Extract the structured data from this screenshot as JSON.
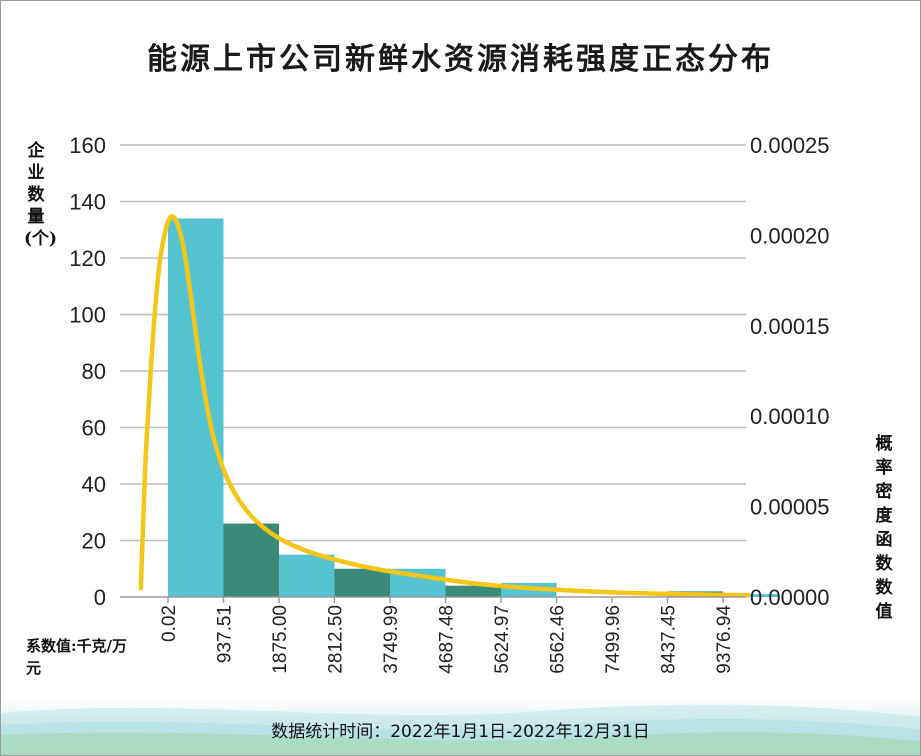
{
  "chart_data": {
    "type": "bar",
    "title": "能源上市公司新鲜水资源消耗强度正态分布",
    "ylabel": "企业数量(个)",
    "y2label": "概率密度函数数值",
    "xlabel": "系数值:千克/万元",
    "footer": "数据统计时间：2022年1月1日-2022年12月31日",
    "x_ticks": [
      "0.02",
      "937.51",
      "1875.00",
      "2812.50",
      "3749.99",
      "4687.48",
      "5624.97",
      "6562.46",
      "7499.96",
      "8437.45",
      "9376.94"
    ],
    "y_ticks": [
      "0",
      "20",
      "40",
      "60",
      "80",
      "100",
      "120",
      "140",
      "160"
    ],
    "y2_ticks": [
      "0.00000",
      "0.00005",
      "0.00010",
      "0.00015",
      "0.00020",
      "0.00025"
    ],
    "ylim": [
      0,
      160
    ],
    "y2lim": [
      0,
      0.00025
    ],
    "bins": [
      {
        "from": 0.02,
        "to": 937.51,
        "count": 134,
        "color": "#55c3d0"
      },
      {
        "from": 937.51,
        "to": 1875.0,
        "count": 26,
        "color": "#3a8a78"
      },
      {
        "from": 1875.0,
        "to": 2812.5,
        "count": 15,
        "color": "#55c3d0"
      },
      {
        "from": 2812.5,
        "to": 3749.99,
        "count": 10,
        "color": "#3a8a78"
      },
      {
        "from": 3749.99,
        "to": 4687.48,
        "count": 10,
        "color": "#55c3d0"
      },
      {
        "from": 4687.48,
        "to": 5624.97,
        "count": 4,
        "color": "#3a8a78"
      },
      {
        "from": 5624.97,
        "to": 6562.46,
        "count": 5,
        "color": "#55c3d0"
      },
      {
        "from": 6562.46,
        "to": 7499.96,
        "count": 0,
        "color": "#3a8a78"
      },
      {
        "from": 7499.96,
        "to": 8437.45,
        "count": 0,
        "color": "#55c3d0"
      },
      {
        "from": 8437.45,
        "to": 9376.94,
        "count": 2,
        "color": "#3a8a78"
      },
      {
        "from": 9376.94,
        "to": 10314.43,
        "count": 1,
        "color": "#55c3d0"
      }
    ],
    "density_curve": {
      "color": "#f5c518",
      "points": [
        [
          -460,
          5e-06
        ],
        [
          -420,
          4e-05
        ],
        [
          -380,
          7.5e-05
        ],
        [
          -320,
          0.00011
        ],
        [
          -240,
          0.00015
        ],
        [
          -140,
          0.000185
        ],
        [
          -40,
          0.000203
        ],
        [
          40,
          0.00021
        ],
        [
          120,
          0.000209
        ],
        [
          220,
          0.0002
        ],
        [
          320,
          0.000182
        ],
        [
          420,
          0.000158
        ],
        [
          560,
          0.000125
        ],
        [
          720,
          9.5e-05
        ],
        [
          900,
          7.4e-05
        ],
        [
          1100,
          5.9e-05
        ],
        [
          1400,
          4.5e-05
        ],
        [
          1800,
          3.4e-05
        ],
        [
          2300,
          2.6e-05
        ],
        [
          2900,
          2e-05
        ],
        [
          3600,
          1.5e-05
        ],
        [
          4400,
          1.1e-05
        ],
        [
          5300,
          7e-06
        ],
        [
          6300,
          4.5e-06
        ],
        [
          7300,
          2.8e-06
        ],
        [
          8300,
          1.8e-06
        ],
        [
          9300,
          1.2e-06
        ],
        [
          9800,
          1e-06
        ]
      ]
    }
  }
}
